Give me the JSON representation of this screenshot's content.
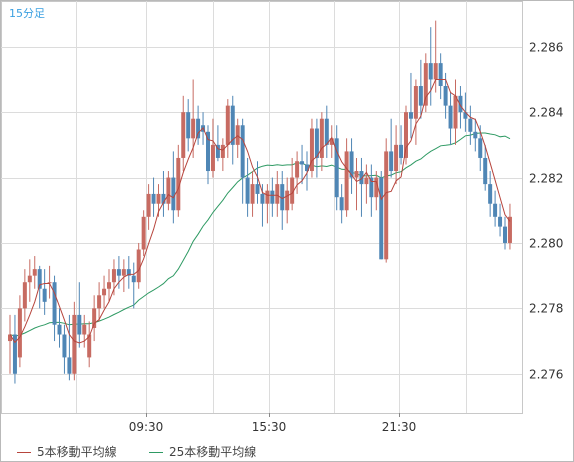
{
  "chart_data": {
    "type": "candlestick",
    "title": "15分足",
    "ylim": [
      2.2748,
      2.2874
    ],
    "y_ticks": [
      "2.276",
      "2.278",
      "2.280",
      "2.282",
      "2.284",
      "2.286"
    ],
    "x_ticks": [
      "09:30",
      "15:30",
      "21:30"
    ],
    "grid": true,
    "colors": {
      "up": "#c76b62",
      "down": "#4f86b5",
      "ma5": "#b7453d",
      "ma25": "#2e9a63",
      "grid": "#dcdcdc",
      "axis_text": "#333333",
      "title": "#3a9fe0"
    },
    "legend": [
      {
        "name": "5本移動平均線",
        "color": "#b7453d"
      },
      {
        "name": "25本移動平均線",
        "color": "#2e9a63"
      }
    ],
    "candles": [
      [
        2.277,
        2.2778,
        2.276,
        2.2772
      ],
      [
        2.2772,
        2.2778,
        2.2757,
        2.276
      ],
      [
        2.2765,
        2.2784,
        2.2762,
        2.278
      ],
      [
        2.278,
        2.2792,
        2.2776,
        2.2788
      ],
      [
        2.2788,
        2.2795,
        2.2782,
        2.279
      ],
      [
        2.279,
        2.2796,
        2.2786,
        2.2792
      ],
      [
        2.2792,
        2.2793,
        2.278,
        2.2786
      ],
      [
        2.2786,
        2.2792,
        2.2778,
        2.2782
      ],
      [
        2.2788,
        2.2793,
        2.2783,
        2.2788
      ],
      [
        2.2788,
        2.279,
        2.277,
        2.2775
      ],
      [
        2.2775,
        2.278,
        2.2768,
        2.2772
      ],
      [
        2.2772,
        2.2775,
        2.276,
        2.2765
      ],
      [
        2.2765,
        2.2778,
        2.2758,
        2.276
      ],
      [
        2.276,
        2.2782,
        2.2758,
        2.2778
      ],
      [
        2.2778,
        2.2788,
        2.2768,
        2.2772
      ],
      [
        2.2772,
        2.2778,
        2.2768,
        2.2775
      ],
      [
        2.2765,
        2.2776,
        2.2762,
        2.2772
      ],
      [
        2.2774,
        2.2784,
        2.277,
        2.278
      ],
      [
        2.278,
        2.2788,
        2.2776,
        2.2784
      ],
      [
        2.2784,
        2.279,
        2.278,
        2.2786
      ],
      [
        2.2786,
        2.2792,
        2.2782,
        2.2788
      ],
      [
        2.2788,
        2.2795,
        2.2784,
        2.2792
      ],
      [
        2.2792,
        2.2796,
        2.2786,
        2.279
      ],
      [
        2.279,
        2.2795,
        2.2785,
        2.2792
      ],
      [
        2.2792,
        2.2796,
        2.2786,
        2.279
      ],
      [
        2.279,
        2.2794,
        2.278,
        2.2788
      ],
      [
        2.2788,
        2.28,
        2.2786,
        2.2798
      ],
      [
        2.2798,
        2.281,
        2.2796,
        2.2808
      ],
      [
        2.2808,
        2.2818,
        2.2804,
        2.2815
      ],
      [
        2.2815,
        2.282,
        2.2808,
        2.2812
      ],
      [
        2.2812,
        2.2818,
        2.2808,
        2.2815
      ],
      [
        2.2815,
        2.2822,
        2.2808,
        2.2812
      ],
      [
        2.2812,
        2.2822,
        2.281,
        2.282
      ],
      [
        2.282,
        2.2828,
        2.2806,
        2.281
      ],
      [
        2.281,
        2.283,
        2.2808,
        2.2826
      ],
      [
        2.2826,
        2.2845,
        2.2822,
        2.284
      ],
      [
        2.284,
        2.2844,
        2.2828,
        2.2832
      ],
      [
        2.2832,
        2.285,
        2.2826,
        2.2838
      ],
      [
        2.2838,
        2.2842,
        2.283,
        2.2832
      ],
      [
        2.2836,
        2.284,
        2.283,
        2.2834
      ],
      [
        2.2834,
        2.2836,
        2.2818,
        2.2822
      ],
      [
        2.2822,
        2.2838,
        2.282,
        2.283
      ],
      [
        2.283,
        2.2836,
        2.2825,
        2.2826
      ],
      [
        2.2826,
        2.2832,
        2.2822,
        2.283
      ],
      [
        2.283,
        2.2844,
        2.2826,
        2.2842
      ],
      [
        2.2842,
        2.2845,
        2.2824,
        2.283
      ],
      [
        2.283,
        2.2838,
        2.2826,
        2.2836
      ],
      [
        2.2836,
        2.2838,
        2.2812,
        2.282
      ],
      [
        2.282,
        2.2826,
        2.2808,
        2.2812
      ],
      [
        2.2812,
        2.2822,
        2.2808,
        2.2818
      ],
      [
        2.2818,
        2.2825,
        2.2812,
        2.2815
      ],
      [
        2.2815,
        2.2818,
        2.2805,
        2.2812
      ],
      [
        2.2812,
        2.2818,
        2.2806,
        2.2816
      ],
      [
        2.2816,
        2.282,
        2.2808,
        2.2812
      ],
      [
        2.2812,
        2.2822,
        2.2808,
        2.2818
      ],
      [
        2.2818,
        2.2822,
        2.2804,
        2.281
      ],
      [
        2.281,
        2.282,
        2.2806,
        2.2816
      ],
      [
        2.2812,
        2.2826,
        2.281,
        2.282
      ],
      [
        2.282,
        2.2828,
        2.2815,
        2.2825
      ],
      [
        2.2825,
        2.283,
        2.2818,
        2.2824
      ],
      [
        2.2824,
        2.2828,
        2.2816,
        2.2822
      ],
      [
        2.2822,
        2.2838,
        2.282,
        2.2835
      ],
      [
        2.2835,
        2.2838,
        2.282,
        2.2826
      ],
      [
        2.2826,
        2.284,
        2.2822,
        2.2838
      ],
      [
        2.2838,
        2.2842,
        2.2826,
        2.283
      ],
      [
        2.283,
        2.2836,
        2.2826,
        2.2832
      ],
      [
        2.2832,
        2.2836,
        2.281,
        2.2814
      ],
      [
        2.2814,
        2.2818,
        2.2806,
        2.281
      ],
      [
        2.281,
        2.2832,
        2.2808,
        2.2828
      ],
      [
        2.2828,
        2.2832,
        2.2815,
        2.282
      ],
      [
        2.282,
        2.2826,
        2.281,
        2.2822
      ],
      [
        2.2822,
        2.2826,
        2.2808,
        2.2818
      ],
      [
        2.2818,
        2.2824,
        2.2812,
        2.282
      ],
      [
        2.282,
        2.2824,
        2.2808,
        2.2814
      ],
      [
        2.2814,
        2.2822,
        2.281,
        2.282
      ],
      [
        2.282,
        2.2822,
        2.2795,
        2.2795
      ],
      [
        2.2795,
        2.2832,
        2.2794,
        2.2828
      ],
      [
        2.2828,
        2.2838,
        2.282,
        2.2822
      ],
      [
        2.2822,
        2.2836,
        2.2818,
        2.283
      ],
      [
        2.283,
        2.2836,
        2.2824,
        2.2826
      ],
      [
        2.2826,
        2.2842,
        2.2824,
        2.284
      ],
      [
        2.284,
        2.2852,
        2.2832,
        2.2838
      ],
      [
        2.2838,
        2.285,
        2.283,
        2.2848
      ],
      [
        2.2848,
        2.2856,
        2.2838,
        2.2842
      ],
      [
        2.2842,
        2.2858,
        2.284,
        2.2855
      ],
      [
        2.2855,
        2.2866,
        2.2842,
        2.285
      ],
      [
        2.285,
        2.2868,
        2.2846,
        2.2855
      ],
      [
        2.2855,
        2.2858,
        2.2844,
        2.2848
      ],
      [
        2.2848,
        2.2852,
        2.2838,
        2.2842
      ],
      [
        2.2842,
        2.2846,
        2.283,
        2.2835
      ],
      [
        2.2835,
        2.285,
        2.283,
        2.2845
      ],
      [
        2.2845,
        2.2848,
        2.2835,
        2.284
      ],
      [
        2.284,
        2.2846,
        2.2834,
        2.2838
      ],
      [
        2.2838,
        2.2842,
        2.283,
        2.2834
      ],
      [
        2.2834,
        2.2838,
        2.2828,
        2.2832
      ],
      [
        2.2832,
        2.2836,
        2.2822,
        2.2826
      ],
      [
        2.2826,
        2.283,
        2.2816,
        2.2818
      ],
      [
        2.2818,
        2.2822,
        2.2808,
        2.2812
      ],
      [
        2.2812,
        2.2816,
        2.2805,
        2.2808
      ],
      [
        2.2808,
        2.2812,
        2.2802,
        2.2805
      ],
      [
        2.2805,
        2.2808,
        2.2798,
        2.28
      ],
      [
        2.28,
        2.2812,
        2.2798,
        2.2808
      ]
    ]
  }
}
